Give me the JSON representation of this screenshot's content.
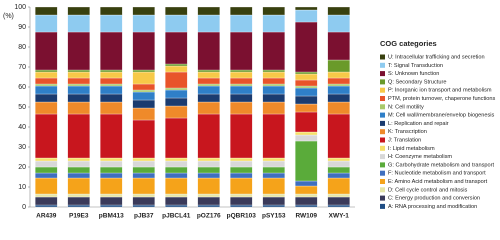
{
  "chart_data": {
    "type": "stacked_bar",
    "y_label": "(%)",
    "legend_title": "COG categories",
    "categories": [
      "AR439",
      "P19E3",
      "pBM413",
      "pJB37",
      "pJBCL41",
      "pOZ176",
      "pQBR103",
      "pSY153",
      "RW109",
      "XWY-1"
    ],
    "ylim": [
      0,
      100
    ],
    "yticks": [
      0,
      10,
      20,
      30,
      40,
      50,
      60,
      70,
      80,
      90,
      100
    ],
    "series": [
      {
        "name": "U: Intracellular trafficking and secretion",
        "color": "#38400f",
        "values": [
          4,
          4,
          4,
          4,
          4,
          4,
          4,
          4,
          1.5,
          4
        ]
      },
      {
        "name": "T: Signal Transduction",
        "color": "#8ecbf0",
        "values": [
          8.5,
          8.5,
          8.5,
          8.5,
          8.5,
          8.5,
          8.5,
          8.5,
          6,
          8.5
        ]
      },
      {
        "name": "S: Unknown function",
        "color": "#7b1030",
        "values": [
          19,
          19,
          19,
          19,
          16,
          19,
          19,
          19,
          25,
          14
        ]
      },
      {
        "name": "Q: Secondary Structure",
        "color": "#6a9a2a",
        "values": [
          1,
          1,
          1,
          1,
          1,
          1,
          1,
          1,
          1,
          6
        ]
      },
      {
        "name": "P: Inorganic ion transport and metabolism",
        "color": "#f7c948",
        "values": [
          3,
          3,
          3,
          6,
          3,
          3,
          3,
          3,
          3,
          3
        ]
      },
      {
        "name": "PTM, protein turnover, chaperone functions",
        "color": "#e8542a",
        "values": [
          3,
          3,
          3,
          3,
          8,
          3,
          3,
          3,
          3,
          3
        ]
      },
      {
        "name": "N: Cell motility",
        "color": "#a9c96a",
        "values": [
          1,
          1,
          1,
          1,
          1,
          1,
          1,
          1,
          1,
          1
        ]
      },
      {
        "name": "M: Cell wall/membrane/envelop biogenesis",
        "color": "#2f7fc8",
        "values": [
          4,
          4,
          4,
          4,
          4,
          4,
          4,
          4,
          4,
          4
        ]
      },
      {
        "name": "L: Replication and repair",
        "color": "#1b3b6f",
        "values": [
          4,
          4,
          4,
          4,
          4,
          4,
          4,
          4,
          4,
          4
        ]
      },
      {
        "name": "K: Transcription",
        "color": "#ef8a2a",
        "values": [
          6,
          6,
          6,
          6,
          6,
          6,
          6,
          6,
          4,
          6
        ]
      },
      {
        "name": "J: Translation",
        "color": "#c8161e",
        "values": [
          22,
          22,
          22,
          19,
          20,
          22,
          22,
          22,
          10,
          22
        ]
      },
      {
        "name": "I: Lipid metabolism",
        "color": "#f5e06a",
        "values": [
          1.5,
          1.5,
          1.5,
          1.5,
          1.5,
          1.5,
          1.5,
          1.5,
          1.5,
          1.5
        ]
      },
      {
        "name": "H: Coenzyme metabolism",
        "color": "#d8d8d8",
        "values": [
          3,
          3,
          3,
          3,
          3,
          3,
          3,
          3,
          3,
          3
        ]
      },
      {
        "name": "G: Carbohydrate metabolism and transport",
        "color": "#5aab3a",
        "values": [
          3,
          3,
          3,
          3,
          3,
          3,
          3,
          3,
          20,
          3
        ]
      },
      {
        "name": "F: Nucleotide metabolism and transport",
        "color": "#3f6fbf",
        "values": [
          2.5,
          2.5,
          2.5,
          2.5,
          2.5,
          2.5,
          2.5,
          2.5,
          2.5,
          2.5
        ]
      },
      {
        "name": "E: Amino Acid metabolism and transport",
        "color": "#f5a31a",
        "values": [
          8,
          8,
          8,
          8,
          8,
          8,
          8,
          8,
          4,
          8
        ]
      },
      {
        "name": "D: Cell cycle control and mitosis",
        "color": "#e6e6a8",
        "values": [
          1.5,
          1.5,
          1.5,
          1.5,
          1.5,
          1.5,
          1.5,
          1.5,
          1.5,
          1.5
        ]
      },
      {
        "name": "C: Energy production and conversion",
        "color": "#3a3a5a",
        "values": [
          4,
          4,
          4,
          4,
          4,
          4,
          4,
          4,
          4,
          4
        ]
      },
      {
        "name": "A: RNA processing and modification",
        "color": "#1f4e85",
        "values": [
          1,
          1,
          1,
          1,
          1,
          1,
          1,
          1,
          1,
          1
        ]
      }
    ]
  }
}
